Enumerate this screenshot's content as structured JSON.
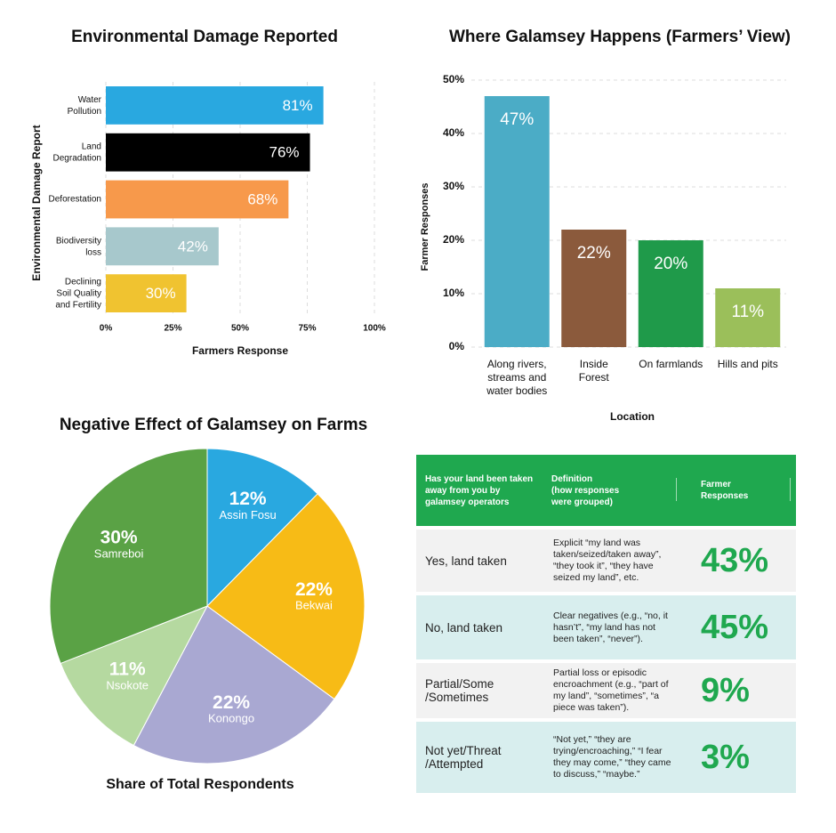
{
  "chart_data": [
    {
      "type": "hbar",
      "title": "Environmental Damage Reported",
      "xlabel": "Farmers Response",
      "ylabel": "Environmental Damage Report",
      "categories": [
        "Water\nPollution",
        "Land\nDegradation",
        "Deforestation",
        "Biodiversity\nloss",
        "Declining\nSoil Quality\nand Fertility"
      ],
      "values": [
        81,
        76,
        68,
        42,
        30
      ],
      "value_labels": [
        "81%",
        "76%",
        "68%",
        "42%",
        "30%"
      ],
      "colors": [
        "#29a8e0",
        "#000000",
        "#f7994b",
        "#a7c8cc",
        "#f0c330"
      ],
      "xlim": [
        0,
        100
      ],
      "xticks": [
        {
          "value": 0,
          "label": "0%"
        },
        {
          "value": 25,
          "label": "25%"
        },
        {
          "value": 50,
          "label": "50%"
        },
        {
          "value": 75,
          "label": "75%"
        },
        {
          "value": 100,
          "label": "100%"
        }
      ],
      "grid": true
    },
    {
      "type": "bar",
      "title": "Where Galamsey Happens (Farmers’ View)",
      "xlabel": "Location",
      "ylabel": "Farmer Responses",
      "categories": [
        "Along rivers,\nstreams and\nwater bodies",
        "Inside\nForest",
        "On farmlands",
        "Hills and pits"
      ],
      "values": [
        47,
        22,
        20,
        11
      ],
      "value_labels": [
        "47%",
        "22%",
        "20%",
        "11%"
      ],
      "colors": [
        "#4bacc6",
        "#8b5a3c",
        "#1f9a4a",
        "#9bbf5a"
      ],
      "ylim": [
        0,
        50
      ],
      "yticks": [
        {
          "value": 0,
          "label": "0%"
        },
        {
          "value": 10,
          "label": "10%"
        },
        {
          "value": 20,
          "label": "20%"
        },
        {
          "value": 30,
          "label": "30%"
        },
        {
          "value": 40,
          "label": "40%"
        },
        {
          "value": 50,
          "label": "50%"
        }
      ],
      "grid": true
    },
    {
      "type": "pie",
      "title": "Negative Effect of Galamsey on Farms",
      "subtitle": "Share of Total Respondents",
      "categories": [
        "Assin Fosu",
        "Bekwai",
        "Konongo",
        "Nsokote",
        "Samreboi"
      ],
      "values": [
        12,
        22,
        22,
        11,
        30
      ],
      "value_labels": [
        "12%",
        "22%",
        "22%",
        "11%",
        "30%"
      ],
      "colors": [
        "#29a8e0",
        "#f7bb16",
        "#a9a8d2",
        "#b5d9a0",
        "#5aa245"
      ]
    }
  ],
  "table": {
    "header": [
      "Has your land been taken away from you by galamsey operators",
      "Definition\n(how responses\nwere grouped)",
      "Farmer\nResponses"
    ],
    "rows": [
      [
        "Yes, land taken",
        "Explicit “my land was taken/seized/taken away”, “they took it”, “they have seized my land”, etc.",
        "43%"
      ],
      [
        "No, land taken",
        "Clear negatives (e.g., “no, it hasn’t”, “my land has not been taken”, “never”).",
        "45%"
      ],
      [
        "Partial/Some\n/Sometimes",
        "Partial loss or episodic encroachment (e.g., “part of my land”, “sometimes”, “a piece was taken”).",
        "9%"
      ],
      [
        "Not yet/Threat\n/Attempted",
        "“Not yet,” “they are trying/encroaching,” “I fear they may come,” “they came to discuss,” “maybe.”",
        "3%"
      ]
    ]
  }
}
